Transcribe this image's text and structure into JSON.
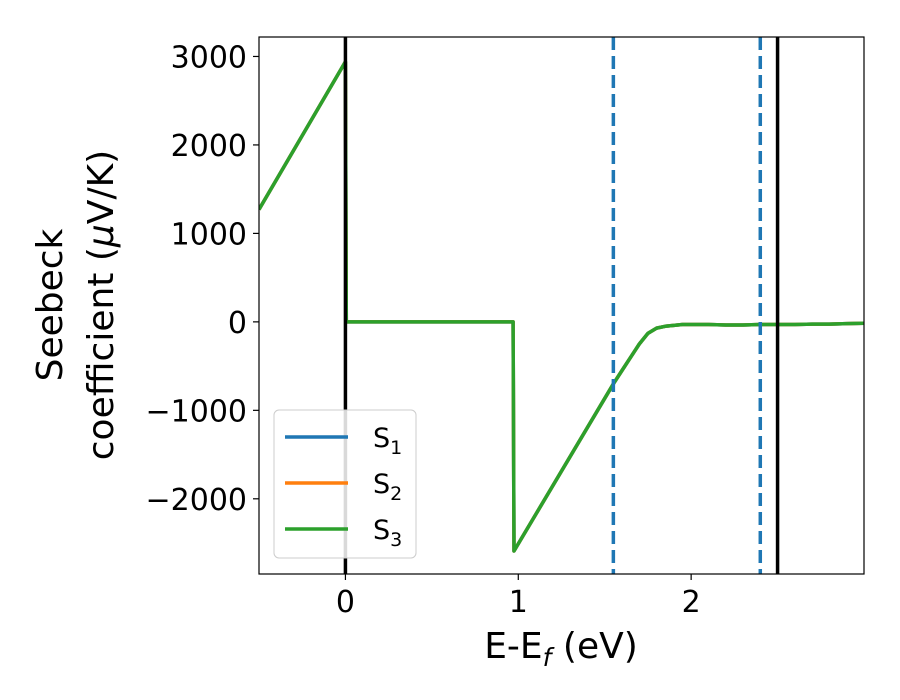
{
  "chart_data": {
    "type": "line",
    "title": "",
    "xlabel": "E-E",
    "xlabel_sub": "f",
    "xlabel_unit": " (eV)",
    "ylabel_line1": "Seebeck",
    "ylabel_line2_text": "coefficient  (",
    "ylabel_mu": "μ",
    "ylabel_unit": "V/K)",
    "xlim": [
      -0.5,
      3.0
    ],
    "ylim": [
      -2850,
      3220
    ],
    "xticks": [
      0,
      1,
      2
    ],
    "xtick_labels": [
      "0",
      "1",
      "2"
    ],
    "yticks": [
      3000,
      2000,
      1000,
      0,
      -1000,
      -2000
    ],
    "ytick_labels": [
      "3000",
      "2000",
      "1000",
      "0",
      "−1000",
      "−2000"
    ],
    "grid": false,
    "legend_position": "lower-left",
    "vlines": [
      {
        "x": 0.0,
        "style": "solid",
        "color": "#000000"
      },
      {
        "x": 2.5,
        "style": "solid",
        "color": "#000000"
      },
      {
        "x": 1.55,
        "style": "dashed",
        "color": "#1f77b4"
      },
      {
        "x": 2.4,
        "style": "dashed",
        "color": "#1f77b4"
      }
    ],
    "series": [
      {
        "name": "S",
        "sub": "1",
        "color": "#1f77b4",
        "x": [
          -0.5,
          0.0,
          0.005,
          0.97,
          0.975,
          1.55,
          1.6,
          1.65,
          1.7,
          1.75,
          1.8,
          1.85,
          1.9,
          1.95,
          2.0,
          2.1,
          2.2,
          2.3,
          2.4,
          2.5,
          2.6,
          2.7,
          2.8,
          2.9,
          3.0
        ],
        "y": [
          1270,
          2940,
          0,
          0,
          -2590,
          -700,
          -550,
          -400,
          -250,
          -130,
          -70,
          -50,
          -40,
          -30,
          -30,
          -30,
          -35,
          -35,
          -30,
          -30,
          -30,
          -25,
          -25,
          -20,
          -15
        ]
      },
      {
        "name": "S",
        "sub": "2",
        "color": "#ff7f0e",
        "x": [
          -0.5,
          0.0,
          0.005,
          0.97,
          0.975,
          1.55,
          1.6,
          1.65,
          1.7,
          1.75,
          1.8,
          1.85,
          1.9,
          1.95,
          2.0,
          2.1,
          2.2,
          2.3,
          2.4,
          2.5,
          2.6,
          2.7,
          2.8,
          2.9,
          3.0
        ],
        "y": [
          1270,
          2940,
          0,
          0,
          -2590,
          -700,
          -550,
          -400,
          -250,
          -130,
          -70,
          -50,
          -40,
          -30,
          -30,
          -30,
          -35,
          -35,
          -30,
          -30,
          -30,
          -25,
          -25,
          -20,
          -15
        ]
      },
      {
        "name": "S",
        "sub": "3",
        "color": "#2ca02c",
        "x": [
          -0.5,
          0.0,
          0.005,
          0.97,
          0.975,
          1.55,
          1.6,
          1.65,
          1.7,
          1.75,
          1.8,
          1.85,
          1.9,
          1.95,
          2.0,
          2.1,
          2.2,
          2.3,
          2.4,
          2.5,
          2.6,
          2.7,
          2.8,
          2.9,
          3.0
        ],
        "y": [
          1270,
          2940,
          0,
          0,
          -2590,
          -700,
          -550,
          -400,
          -250,
          -130,
          -70,
          -50,
          -40,
          -30,
          -30,
          -30,
          -35,
          -35,
          -30,
          -30,
          -30,
          -25,
          -25,
          -20,
          -15
        ]
      }
    ]
  }
}
